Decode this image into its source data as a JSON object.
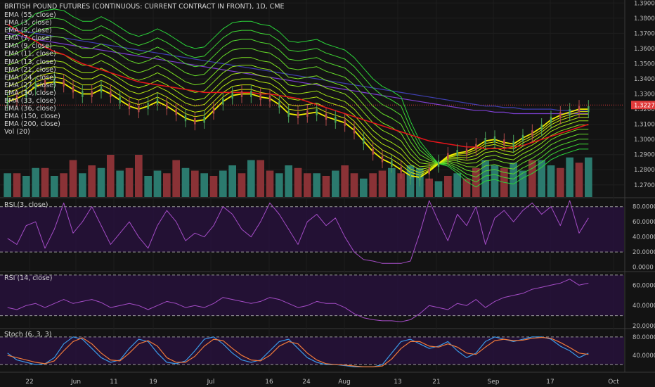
{
  "title": "BRITISH POUND FUTURES (CONTINUOUS: CURRENT CONTRACT IN FRONT), 1D, CME",
  "ema_legend": [
    "EMA (55, close)",
    "EMA (3, close)",
    "EMA (5, close)",
    "EMA (7, close)",
    "EMA (9, close)",
    "EMA (11, close)",
    "EMA (13, close)",
    "EMA (21, close)",
    "EMA (24, close)",
    "EMA (27, close)",
    "EMA (30, close)",
    "EMA (33, close)",
    "EMA (36, close)",
    "EMA (150, close)",
    "EMA (200, close)",
    "Vol (20)"
  ],
  "panes": {
    "rsi3_label": "RSI (3, close)",
    "rsi14_label": "RSI (14, close)",
    "stoch_label": "Stoch (6, 3, 3)"
  },
  "colors": {
    "background": "#131313",
    "price_tag": "#e03a3a",
    "ema55": "#e8151a",
    "ema150": "#7b3fcf",
    "ema200": "#3f3fb0",
    "short_ema": "#f2f000",
    "long_ema": "#2ad43a",
    "vol_up": "#2b7a6e",
    "vol_down": "#8a3236",
    "rsi": "#a44cc6",
    "stoch_k": "#3b9be8",
    "stoch_d": "#f07a3a",
    "osc_band": "#2a1240"
  },
  "chart_data": [
    {
      "type": "line",
      "name": "price",
      "x_ticks": [
        "22",
        "Jun",
        "11",
        "19",
        "Jul",
        "16",
        "24",
        "Aug",
        "13",
        "21",
        "Sep",
        "17",
        "Oct"
      ],
      "y_ticks": [
        "1.3900",
        "1.3800",
        "1.3700",
        "1.3600",
        "1.3500",
        "1.3400",
        "1.3300",
        "1.3200",
        "1.3100",
        "1.3000",
        "1.2900",
        "1.2800",
        "1.2700"
      ],
      "ylim": [
        1.262,
        1.392
      ],
      "last_price": "1.3227",
      "fast_ema": [
        1.325,
        1.327,
        1.33,
        1.335,
        1.337,
        1.338,
        1.337,
        1.333,
        1.33,
        1.33,
        1.333,
        1.33,
        1.326,
        1.322,
        1.32,
        1.322,
        1.325,
        1.322,
        1.318,
        1.314,
        1.312,
        1.313,
        1.319,
        1.325,
        1.329,
        1.33,
        1.33,
        1.328,
        1.327,
        1.323,
        1.317,
        1.316,
        1.317,
        1.318,
        1.315,
        1.313,
        1.311,
        1.306,
        1.299,
        1.292,
        1.287,
        1.284,
        1.28,
        1.276,
        1.275,
        1.279,
        1.284,
        1.289,
        1.291,
        1.292,
        1.295,
        1.299,
        1.3,
        1.298,
        1.297,
        1.301,
        1.304,
        1.308,
        1.313,
        1.316,
        1.318,
        1.32,
        1.32
      ],
      "ema_band_offsets": [
        0.0,
        0.003,
        0.006,
        0.01,
        0.014,
        0.019,
        0.024,
        0.03,
        0.036,
        0.042,
        0.048
      ],
      "ema55": [
        1.376,
        1.372,
        1.368,
        1.365,
        1.361,
        1.358,
        1.356,
        1.353,
        1.35,
        1.348,
        1.346,
        1.344,
        1.342,
        1.34,
        1.338,
        1.337,
        1.336,
        1.335,
        1.334,
        1.333,
        1.332,
        1.331,
        1.331,
        1.331,
        1.331,
        1.331,
        1.331,
        1.33,
        1.33,
        1.329,
        1.328,
        1.327,
        1.325,
        1.323,
        1.321,
        1.319,
        1.317,
        1.315,
        1.313,
        1.311,
        1.309,
        1.307,
        1.305,
        1.303,
        1.301,
        1.299,
        1.298,
        1.297,
        1.296,
        1.295,
        1.295,
        1.294,
        1.294,
        1.294,
        1.295,
        1.296,
        1.298,
        1.3,
        1.302,
        1.304,
        1.306,
        1.308,
        1.31
      ],
      "ema150": [
        1.37,
        1.369,
        1.367,
        1.366,
        1.365,
        1.364,
        1.363,
        1.362,
        1.361,
        1.36,
        1.359,
        1.358,
        1.357,
        1.356,
        1.355,
        1.354,
        1.353,
        1.352,
        1.351,
        1.35,
        1.349,
        1.348,
        1.347,
        1.346,
        1.345,
        1.344,
        1.343,
        1.342,
        1.341,
        1.34,
        1.339,
        1.338,
        1.337,
        1.336,
        1.335,
        1.334,
        1.333,
        1.332,
        1.331,
        1.33,
        1.329,
        1.328,
        1.327,
        1.326,
        1.325,
        1.324,
        1.323,
        1.322,
        1.321,
        1.32,
        1.319,
        1.319,
        1.318,
        1.318,
        1.317,
        1.317,
        1.317,
        1.317,
        1.317,
        1.317,
        1.317,
        1.317,
        1.317
      ],
      "ema200": [
        1.373,
        1.372,
        1.371,
        1.37,
        1.369,
        1.368,
        1.367,
        1.366,
        1.365,
        1.364,
        1.363,
        1.362,
        1.361,
        1.36,
        1.359,
        1.358,
        1.357,
        1.356,
        1.355,
        1.354,
        1.353,
        1.352,
        1.351,
        1.35,
        1.349,
        1.348,
        1.347,
        1.346,
        1.345,
        1.344,
        1.343,
        1.342,
        1.341,
        1.34,
        1.339,
        1.338,
        1.337,
        1.336,
        1.335,
        1.334,
        1.333,
        1.332,
        1.331,
        1.33,
        1.329,
        1.328,
        1.327,
        1.326,
        1.325,
        1.324,
        1.323,
        1.322,
        1.322,
        1.321,
        1.321,
        1.32,
        1.32,
        1.32,
        1.32,
        1.319,
        1.319,
        1.319,
        1.319
      ],
      "volume": [
        0.45,
        0.45,
        0.4,
        0.55,
        0.55,
        0.4,
        0.45,
        0.7,
        0.45,
        0.6,
        0.55,
        0.8,
        0.5,
        0.55,
        0.8,
        0.4,
        0.5,
        0.45,
        0.7,
        0.55,
        0.5,
        0.45,
        0.4,
        0.5,
        0.6,
        0.45,
        0.7,
        0.7,
        0.5,
        0.45,
        0.6,
        0.55,
        0.45,
        0.45,
        0.4,
        0.5,
        0.6,
        0.45,
        0.35,
        0.45,
        0.5,
        0.55,
        0.45,
        0.6,
        0.55,
        0.35,
        0.3,
        0.4,
        0.45,
        0.35,
        0.55,
        0.7,
        0.6,
        0.55,
        0.65,
        0.5,
        0.7,
        0.7,
        0.6,
        0.55,
        0.75,
        0.65,
        0.75
      ],
      "volume_up": [
        1,
        0,
        1,
        1,
        0,
        1,
        0,
        0,
        1,
        0,
        1,
        0,
        1,
        0,
        0,
        1,
        1,
        0,
        0,
        1,
        0,
        1,
        0,
        1,
        1,
        0,
        1,
        0,
        0,
        1,
        1,
        0,
        0,
        1,
        0,
        1,
        0,
        0,
        1,
        0,
        0,
        1,
        0,
        1,
        1,
        0,
        1,
        0,
        1,
        0,
        0,
        1,
        1,
        0,
        1,
        1,
        0,
        1,
        1,
        0,
        1,
        0,
        1
      ]
    },
    {
      "type": "line",
      "name": "RSI (3, close)",
      "y_ticks": [
        "80.0000",
        "60.0000",
        "40.0000",
        "20.0000",
        "0.0000"
      ],
      "ylim": [
        -5,
        90
      ],
      "bands": [
        80,
        20
      ],
      "values": [
        38,
        30,
        55,
        60,
        25,
        50,
        85,
        45,
        60,
        80,
        55,
        30,
        45,
        60,
        40,
        25,
        55,
        75,
        60,
        35,
        45,
        40,
        55,
        80,
        70,
        50,
        40,
        60,
        85,
        70,
        50,
        30,
        60,
        70,
        55,
        65,
        40,
        20,
        10,
        8,
        5,
        5,
        5,
        8,
        45,
        88,
        60,
        35,
        70,
        55,
        80,
        30,
        65,
        75,
        60,
        75,
        85,
        70,
        80,
        55,
        88,
        45,
        65
      ]
    },
    {
      "type": "line",
      "name": "RSI (14, close)",
      "y_ticks": [
        "60.0000",
        "40.0000",
        "20.0000"
      ],
      "ylim": [
        18,
        72
      ],
      "bands": [
        70,
        30
      ],
      "values": [
        38,
        36,
        40,
        42,
        38,
        42,
        46,
        42,
        44,
        46,
        43,
        38,
        40,
        42,
        40,
        36,
        40,
        44,
        42,
        38,
        40,
        38,
        42,
        48,
        46,
        44,
        42,
        44,
        48,
        46,
        42,
        38,
        40,
        44,
        42,
        42,
        38,
        32,
        28,
        26,
        25,
        25,
        24,
        26,
        32,
        40,
        38,
        36,
        42,
        40,
        46,
        38,
        44,
        48,
        50,
        52,
        56,
        58,
        60,
        62,
        66,
        60,
        62
      ]
    },
    {
      "type": "line",
      "name": "Stoch (6, 3, 3)",
      "y_ticks": [
        "80.0000",
        "40.0000"
      ],
      "ylim": [
        5,
        95
      ],
      "bands": [
        80,
        20
      ],
      "k_values": [
        45,
        30,
        25,
        20,
        22,
        35,
        65,
        80,
        75,
        55,
        35,
        25,
        30,
        55,
        75,
        70,
        45,
        25,
        22,
        28,
        50,
        75,
        80,
        65,
        45,
        30,
        25,
        30,
        50,
        70,
        75,
        55,
        35,
        25,
        20,
        20,
        18,
        15,
        15,
        15,
        20,
        45,
        70,
        75,
        65,
        55,
        60,
        70,
        50,
        35,
        45,
        70,
        80,
        75,
        70,
        75,
        80,
        80,
        75,
        60,
        50,
        35,
        45
      ],
      "d_values": [
        40,
        35,
        30,
        25,
        22,
        28,
        50,
        70,
        78,
        65,
        45,
        30,
        28,
        45,
        65,
        72,
        60,
        35,
        25,
        25,
        38,
        60,
        75,
        72,
        55,
        40,
        30,
        28,
        40,
        60,
        70,
        65,
        45,
        30,
        22,
        20,
        19,
        17,
        15,
        15,
        17,
        32,
        55,
        70,
        70,
        60,
        58,
        65,
        58,
        45,
        42,
        58,
        72,
        75,
        72,
        73,
        77,
        79,
        77,
        68,
        57,
        45,
        42
      ]
    }
  ]
}
